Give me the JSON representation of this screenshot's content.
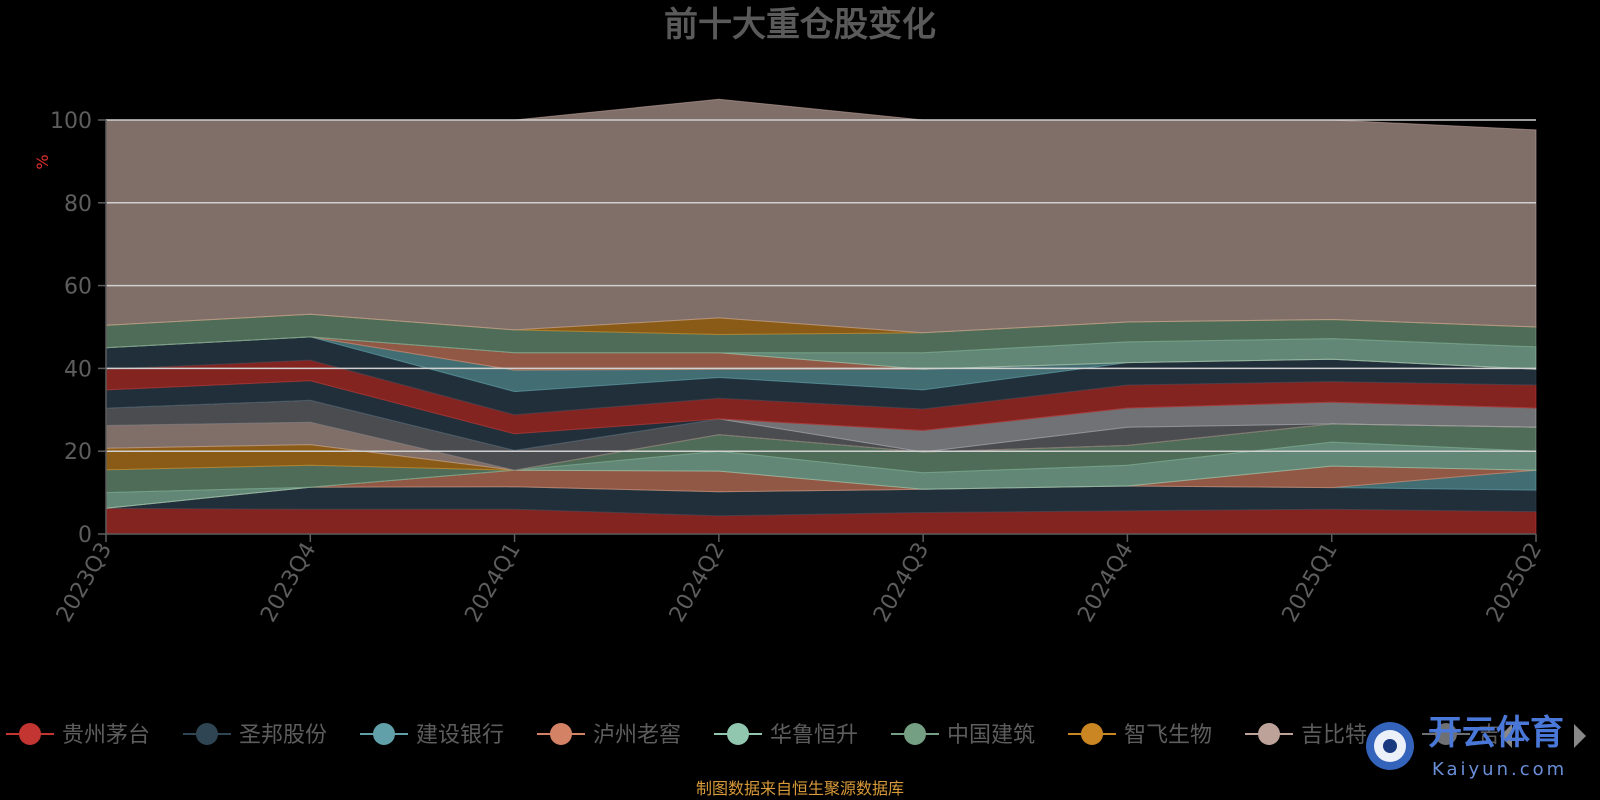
{
  "chart_data": {
    "type": "area",
    "stacked": true,
    "title": "前十大重仓股变化",
    "ylabel": "%",
    "ylim": [
      0,
      100
    ],
    "yticks": [
      "0",
      "20",
      "40",
      "60",
      "80",
      "100"
    ],
    "categories": [
      "2023Q3",
      "2023Q4",
      "2024Q1",
      "2024Q2",
      "2024Q3",
      "2024Q4",
      "2025Q1",
      "2025Q2"
    ],
    "legend_position": "bottom",
    "series": [
      {
        "name": "贵州茅台",
        "color": "#c23531",
        "values": [
          6.2,
          6.0,
          6.0,
          4.4,
          5.2,
          5.6,
          6.0,
          5.4
        ]
      },
      {
        "name": "圣邦股份",
        "color": "#2f4554",
        "values": [
          0.0,
          5.3,
          5.4,
          5.8,
          5.6,
          6.0,
          5.2,
          5.2
        ]
      },
      {
        "name": "建设银行",
        "color": "#61a0a8",
        "values": [
          0.0,
          0.0,
          0.0,
          0.0,
          0.0,
          0.0,
          0.0,
          4.8
        ]
      },
      {
        "name": "泸州老窖",
        "color": "#d48265",
        "values": [
          0.0,
          0.0,
          4.0,
          5.0,
          0.0,
          0.0,
          5.2,
          0.0
        ]
      },
      {
        "name": "华鲁恒升",
        "color": "#91c7ae",
        "values": [
          3.8,
          0.0,
          0.0,
          4.8,
          4.0,
          5.0,
          5.8,
          4.6
        ]
      },
      {
        "name": "中国建筑",
        "color": "#749f83",
        "values": [
          5.5,
          5.3,
          0.0,
          4.0,
          5.0,
          4.8,
          4.4,
          5.8
        ]
      },
      {
        "name": "智飞生物",
        "color": "#ca8622",
        "values": [
          5.2,
          5.0,
          0.0,
          0.0,
          0.0,
          0.0,
          0.0,
          0.0
        ]
      },
      {
        "name": "吉比特",
        "color": "#bda29a",
        "values": [
          5.5,
          5.4,
          0.0,
          0.0,
          0.0,
          0.0,
          0.0,
          0.0
        ]
      },
      {
        "name": "",
        "color": "#6e7074",
        "values": [
          4.2,
          5.3,
          4.8,
          3.8,
          0.0,
          4.4,
          0.0,
          0.0
        ]
      },
      {
        "name": "",
        "color": "#a5a8ae",
        "values": [
          0.0,
          0.0,
          0.0,
          0.0,
          5.2,
          4.6,
          5.2,
          4.6
        ]
      },
      {
        "name": "",
        "color": "#2f4554",
        "values": [
          4.4,
          4.7,
          4.0,
          0.0,
          0.0,
          0.0,
          0.0,
          0.0
        ]
      },
      {
        "name": "",
        "color": "#c23531",
        "values": [
          5.0,
          5.0,
          4.6,
          5.0,
          5.2,
          5.6,
          5.0,
          5.6
        ]
      },
      {
        "name": "",
        "color": "#2f4554",
        "values": [
          5.2,
          5.6,
          5.6,
          5.0,
          4.6,
          5.4,
          5.4,
          3.8
        ]
      },
      {
        "name": "",
        "color": "#61a0a8",
        "values": [
          0.0,
          0.0,
          5.2,
          2.0,
          5.0,
          0.0,
          0.0,
          0.0
        ]
      },
      {
        "name": "",
        "color": "#d48265",
        "values": [
          0.0,
          0.0,
          4.2,
          4.0,
          0.0,
          0.0,
          0.0,
          0.0
        ]
      },
      {
        "name": "",
        "color": "#91c7ae",
        "values": [
          0.0,
          0.0,
          0.0,
          0.0,
          4.0,
          5.0,
          5.0,
          5.4
        ]
      },
      {
        "name": "",
        "color": "#749f83",
        "values": [
          5.4,
          5.5,
          5.5,
          4.4,
          4.8,
          4.8,
          4.6,
          4.8
        ]
      },
      {
        "name": "",
        "color": "#ca8622",
        "values": [
          0.0,
          0.0,
          0.0,
          4.0,
          0.0,
          0.0,
          0.0,
          0.0
        ]
      },
      {
        "name": "",
        "color": "#bda29a",
        "values": [
          49.6,
          46.9,
          50.7,
          52.8,
          51.4,
          48.8,
          48.2,
          47.6
        ]
      }
    ]
  },
  "legend": {
    "items": [
      {
        "label": "贵州茅台",
        "color": "#c23531"
      },
      {
        "label": "圣邦股份",
        "color": "#2f4554"
      },
      {
        "label": "建设银行",
        "color": "#61a0a8"
      },
      {
        "label": "泸州老窖",
        "color": "#d48265"
      },
      {
        "label": "华鲁恒升",
        "color": "#91c7ae"
      },
      {
        "label": "中国建筑",
        "color": "#749f83"
      },
      {
        "label": "智飞生物",
        "color": "#ca8622"
      },
      {
        "label": "吉比特",
        "color": "#bda29a"
      },
      {
        "label": "吉",
        "color": "#6e7074"
      }
    ]
  },
  "source_note": "制图数据来自恒生聚源数据库",
  "watermark": {
    "brand": "开云体育",
    "domain": "Kaiyun.com"
  },
  "colors": {
    "background": "#000000",
    "gridline": "#d0d0d0",
    "axis": "#5d5d5d"
  }
}
